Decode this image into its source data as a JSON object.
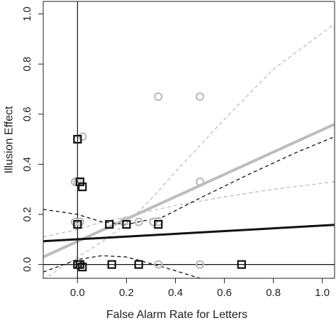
{
  "chart_data": {
    "type": "scatter",
    "title": "",
    "xlabel": "False Alarm Rate for Letters",
    "ylabel": "Illusion Effect",
    "xlim": [
      -0.14,
      1.05
    ],
    "ylim": [
      -0.055,
      1.05
    ],
    "x_ticks": [
      0.0,
      0.2,
      0.4,
      0.6,
      0.8,
      1.0
    ],
    "x_tick_labels": [
      "0.0",
      "0.2",
      "0.4",
      "0.6",
      "0.8",
      "1.0"
    ],
    "y_ticks": [
      0.0,
      0.2,
      0.4,
      0.6,
      0.8,
      1.0
    ],
    "y_tick_labels": [
      "0.0",
      "0.2",
      "0.4",
      "0.6",
      "0.8",
      "1.0"
    ],
    "grid": false,
    "reference_lines": {
      "x": 0,
      "y": 0
    },
    "colors": {
      "gray": "#bdbdbd",
      "black": "#111111"
    },
    "series": [
      {
        "marker": "circle",
        "color": "#bdbdbd",
        "points": [
          {
            "x": 0.0,
            "y": 0.0
          },
          {
            "x": 0.0,
            "y": 0.0
          },
          {
            "x": 0.01,
            "y": 0.0
          },
          {
            "x": -0.01,
            "y": 0.17
          },
          {
            "x": 0.0,
            "y": 0.16
          },
          {
            "x": 0.01,
            "y": 0.17
          },
          {
            "x": -0.01,
            "y": 0.33
          },
          {
            "x": 0.0,
            "y": 0.33
          },
          {
            "x": 0.0,
            "y": 0.5
          },
          {
            "x": 0.02,
            "y": 0.51
          },
          {
            "x": 0.19,
            "y": 0.17
          },
          {
            "x": 0.25,
            "y": 0.17
          },
          {
            "x": 0.31,
            "y": 0.17
          },
          {
            "x": 0.33,
            "y": 0.17
          },
          {
            "x": 0.33,
            "y": 0.0
          },
          {
            "x": 0.33,
            "y": 0.67
          },
          {
            "x": 0.5,
            "y": 0.67
          },
          {
            "x": 0.5,
            "y": 0.33
          },
          {
            "x": 0.5,
            "y": 0.0
          }
        ]
      },
      {
        "marker": "square",
        "color": "#111111",
        "points": [
          {
            "x": 0.0,
            "y": 0.0
          },
          {
            "x": 0.01,
            "y": 0.0
          },
          {
            "x": 0.02,
            "y": -0.01
          },
          {
            "x": 0.0,
            "y": 0.16
          },
          {
            "x": 0.0,
            "y": 0.5
          },
          {
            "x": 0.01,
            "y": 0.33
          },
          {
            "x": 0.02,
            "y": 0.31
          },
          {
            "x": 0.13,
            "y": 0.16
          },
          {
            "x": 0.2,
            "y": 0.16
          },
          {
            "x": 0.33,
            "y": 0.16
          },
          {
            "x": 0.14,
            "y": 0.0
          },
          {
            "x": 0.25,
            "y": 0.0
          },
          {
            "x": 0.67,
            "y": 0.0
          }
        ]
      }
    ],
    "fits": [
      {
        "color": "#bdbdbd",
        "style": "solid",
        "width": 4,
        "points": [
          [
            -0.14,
            0.03
          ],
          [
            1.05,
            0.56
          ]
        ]
      },
      {
        "color": "#bdbdbd",
        "style": "dashed",
        "width": 1.3,
        "points": [
          [
            -0.14,
            0.11
          ],
          [
            0.0,
            0.14
          ],
          [
            0.1,
            0.17
          ],
          [
            0.2,
            0.19
          ],
          [
            0.3,
            0.215
          ],
          [
            0.4,
            0.235
          ],
          [
            0.6,
            0.27
          ],
          [
            0.8,
            0.3
          ],
          [
            1.05,
            0.33
          ]
        ]
      },
      {
        "color": "#bdbdbd",
        "style": "dashed",
        "width": 1.3,
        "points": [
          [
            -0.14,
            -0.06
          ],
          [
            0.0,
            0.03
          ],
          [
            0.1,
            0.09
          ],
          [
            0.2,
            0.165
          ],
          [
            0.3,
            0.26
          ],
          [
            0.4,
            0.37
          ],
          [
            0.6,
            0.58
          ],
          [
            0.8,
            0.78
          ],
          [
            1.05,
            0.96
          ]
        ]
      },
      {
        "color": "#111111",
        "style": "solid",
        "width": 3,
        "points": [
          [
            -0.14,
            0.093
          ],
          [
            1.05,
            0.158
          ]
        ]
      },
      {
        "color": "#111111",
        "style": "dashed",
        "width": 1.3,
        "points": [
          [
            -0.14,
            0.22
          ],
          [
            0.0,
            0.2
          ],
          [
            0.1,
            0.17
          ],
          [
            0.2,
            0.16
          ],
          [
            0.35,
            0.19
          ],
          [
            0.5,
            0.265
          ],
          [
            0.7,
            0.36
          ],
          [
            0.9,
            0.45
          ],
          [
            1.05,
            0.51
          ]
        ]
      },
      {
        "color": "#111111",
        "style": "dashed",
        "width": 1.3,
        "points": [
          [
            -0.14,
            -0.03
          ],
          [
            0.0,
            0.02
          ],
          [
            0.1,
            0.035
          ],
          [
            0.2,
            0.03
          ],
          [
            0.35,
            -0.01
          ],
          [
            0.5,
            -0.055
          ],
          [
            0.7,
            -0.12
          ],
          [
            0.9,
            -0.19
          ],
          [
            1.05,
            -0.24
          ]
        ]
      }
    ]
  }
}
